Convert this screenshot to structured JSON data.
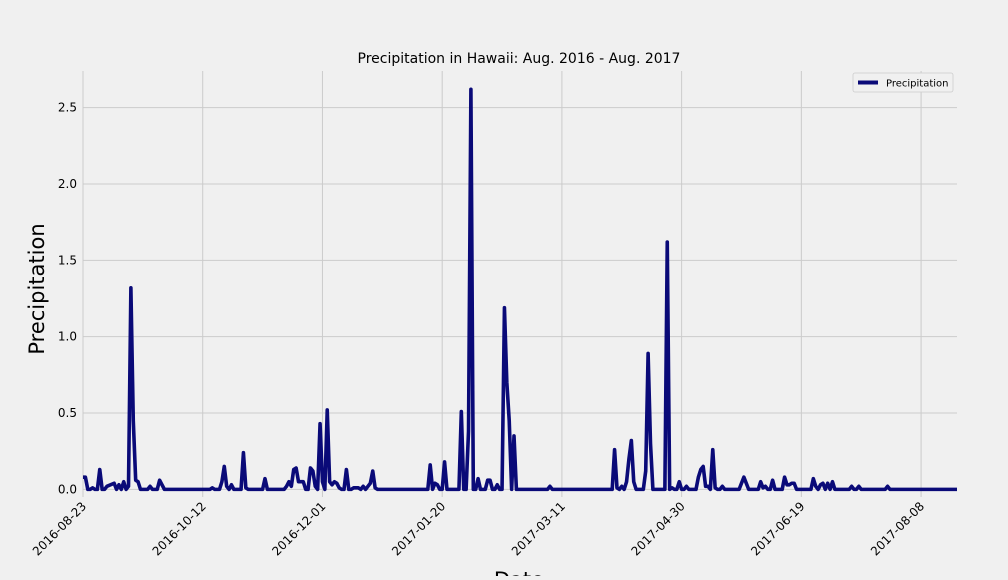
{
  "chart_data": {
    "type": "line",
    "title": "Precipitation in Hawaii: Aug. 2016 - Aug. 2017",
    "xlabel": "Date",
    "ylabel": "Precipitation",
    "x_type": "date",
    "xlim": [
      "2016-08-23",
      "2017-08-23"
    ],
    "ylim": [
      -0.05,
      2.74
    ],
    "yticks": [
      0.0,
      0.5,
      1.0,
      1.5,
      2.0,
      2.5
    ],
    "ytick_labels": [
      "0.0",
      "0.5",
      "1.0",
      "1.5",
      "2.0",
      "2.5"
    ],
    "xticks": [
      "2016-08-23",
      "2016-10-12",
      "2016-12-01",
      "2017-01-20",
      "2017-03-11",
      "2017-04-30",
      "2017-06-19",
      "2017-08-08"
    ],
    "grid": true,
    "legend_position": "top-right",
    "series": [
      {
        "name": "Precipitation",
        "color": "#0a0a78",
        "points": [
          [
            "2016-08-23",
            0.08
          ],
          [
            "2016-08-24",
            0.08
          ],
          [
            "2016-08-25",
            0.0
          ],
          [
            "2016-08-26",
            0.0
          ],
          [
            "2016-08-27",
            0.01
          ],
          [
            "2016-08-28",
            0.0
          ],
          [
            "2016-08-29",
            0.0
          ],
          [
            "2016-08-30",
            0.13
          ],
          [
            "2016-08-31",
            0.0
          ],
          [
            "2016-09-01",
            0.0
          ],
          [
            "2016-09-02",
            0.02
          ],
          [
            "2016-09-05",
            0.04
          ],
          [
            "2016-09-06",
            0.0
          ],
          [
            "2016-09-07",
            0.03
          ],
          [
            "2016-09-08",
            0.0
          ],
          [
            "2016-09-09",
            0.05
          ],
          [
            "2016-09-10",
            0.0
          ],
          [
            "2016-09-11",
            0.02
          ],
          [
            "2016-09-12",
            1.32
          ],
          [
            "2016-09-13",
            0.45
          ],
          [
            "2016-09-14",
            0.06
          ],
          [
            "2016-09-15",
            0.05
          ],
          [
            "2016-09-16",
            0.0
          ],
          [
            "2016-09-19",
            0.0
          ],
          [
            "2016-09-20",
            0.02
          ],
          [
            "2016-09-21",
            0.0
          ],
          [
            "2016-09-22",
            0.0
          ],
          [
            "2016-09-23",
            0.0
          ],
          [
            "2016-09-24",
            0.06
          ],
          [
            "2016-09-25",
            0.03
          ],
          [
            "2016-09-26",
            0.0
          ],
          [
            "2016-10-15",
            0.0
          ],
          [
            "2016-10-16",
            0.01
          ],
          [
            "2016-10-17",
            0.0
          ],
          [
            "2016-10-18",
            0.0
          ],
          [
            "2016-10-19",
            0.0
          ],
          [
            "2016-10-20",
            0.05
          ],
          [
            "2016-10-21",
            0.15
          ],
          [
            "2016-10-22",
            0.02
          ],
          [
            "2016-10-23",
            0.0
          ],
          [
            "2016-10-24",
            0.03
          ],
          [
            "2016-10-25",
            0.0
          ],
          [
            "2016-10-26",
            0.0
          ],
          [
            "2016-10-27",
            0.0
          ],
          [
            "2016-10-28",
            0.0
          ],
          [
            "2016-10-29",
            0.24
          ],
          [
            "2016-10-30",
            0.01
          ],
          [
            "2016-10-31",
            0.0
          ],
          [
            "2016-11-06",
            0.0
          ],
          [
            "2016-11-07",
            0.07
          ],
          [
            "2016-11-08",
            0.0
          ],
          [
            "2016-11-09",
            0.0
          ],
          [
            "2016-11-15",
            0.0
          ],
          [
            "2016-11-16",
            0.02
          ],
          [
            "2016-11-17",
            0.05
          ],
          [
            "2016-11-18",
            0.02
          ],
          [
            "2016-11-19",
            0.13
          ],
          [
            "2016-11-20",
            0.14
          ],
          [
            "2016-11-21",
            0.05
          ],
          [
            "2016-11-22",
            0.05
          ],
          [
            "2016-11-23",
            0.05
          ],
          [
            "2016-11-24",
            0.0
          ],
          [
            "2016-11-25",
            0.0
          ],
          [
            "2016-11-26",
            0.14
          ],
          [
            "2016-11-27",
            0.12
          ],
          [
            "2016-11-28",
            0.02
          ],
          [
            "2016-11-29",
            0.0
          ],
          [
            "2016-11-30",
            0.43
          ],
          [
            "2016-12-01",
            0.05
          ],
          [
            "2016-12-02",
            0.0
          ],
          [
            "2016-12-03",
            0.52
          ],
          [
            "2016-12-04",
            0.05
          ],
          [
            "2016-12-05",
            0.03
          ],
          [
            "2016-12-06",
            0.05
          ],
          [
            "2016-12-07",
            0.04
          ],
          [
            "2016-12-08",
            0.01
          ],
          [
            "2016-12-09",
            0.0
          ],
          [
            "2016-12-10",
            0.0
          ],
          [
            "2016-12-11",
            0.13
          ],
          [
            "2016-12-12",
            0.0
          ],
          [
            "2016-12-13",
            0.0
          ],
          [
            "2016-12-14",
            0.01
          ],
          [
            "2016-12-15",
            0.01
          ],
          [
            "2016-12-16",
            0.01
          ],
          [
            "2016-12-17",
            0.0
          ],
          [
            "2016-12-18",
            0.02
          ],
          [
            "2016-12-19",
            0.0
          ],
          [
            "2016-12-20",
            0.02
          ],
          [
            "2016-12-21",
            0.04
          ],
          [
            "2016-12-22",
            0.12
          ],
          [
            "2016-12-23",
            0.01
          ],
          [
            "2016-12-24",
            0.0
          ],
          [
            "2017-01-14",
            0.0
          ],
          [
            "2017-01-15",
            0.16
          ],
          [
            "2017-01-16",
            0.0
          ],
          [
            "2017-01-17",
            0.04
          ],
          [
            "2017-01-18",
            0.03
          ],
          [
            "2017-01-19",
            0.0
          ],
          [
            "2017-01-20",
            0.0
          ],
          [
            "2017-01-21",
            0.18
          ],
          [
            "2017-01-22",
            0.0
          ],
          [
            "2017-01-23",
            0.0
          ],
          [
            "2017-01-27",
            0.0
          ],
          [
            "2017-01-28",
            0.51
          ],
          [
            "2017-01-29",
            0.0
          ],
          [
            "2017-01-30",
            0.0
          ],
          [
            "2017-01-31",
            0.38
          ],
          [
            "2017-02-01",
            2.62
          ],
          [
            "2017-02-02",
            0.0
          ],
          [
            "2017-02-03",
            0.0
          ],
          [
            "2017-02-04",
            0.07
          ],
          [
            "2017-02-05",
            0.0
          ],
          [
            "2017-02-06",
            0.0
          ],
          [
            "2017-02-07",
            0.0
          ],
          [
            "2017-02-08",
            0.06
          ],
          [
            "2017-02-09",
            0.06
          ],
          [
            "2017-02-10",
            0.0
          ],
          [
            "2017-02-11",
            0.0
          ],
          [
            "2017-02-12",
            0.03
          ],
          [
            "2017-02-13",
            0.0
          ],
          [
            "2017-02-14",
            0.0
          ],
          [
            "2017-02-15",
            1.19
          ],
          [
            "2017-02-16",
            0.7
          ],
          [
            "2017-02-17",
            0.45
          ],
          [
            "2017-02-18",
            0.0
          ],
          [
            "2017-02-19",
            0.35
          ],
          [
            "2017-02-20",
            0.0
          ],
          [
            "2017-02-21",
            0.0
          ],
          [
            "2017-03-05",
            0.0
          ],
          [
            "2017-03-06",
            0.02
          ],
          [
            "2017-03-07",
            0.0
          ],
          [
            "2017-03-08",
            0.0
          ],
          [
            "2017-04-01",
            0.0
          ],
          [
            "2017-04-02",
            0.26
          ],
          [
            "2017-04-03",
            0.01
          ],
          [
            "2017-04-04",
            0.0
          ],
          [
            "2017-04-05",
            0.02
          ],
          [
            "2017-04-06",
            0.0
          ],
          [
            "2017-04-07",
            0.05
          ],
          [
            "2017-04-08",
            0.2
          ],
          [
            "2017-04-09",
            0.32
          ],
          [
            "2017-04-10",
            0.05
          ],
          [
            "2017-04-11",
            0.0
          ],
          [
            "2017-04-12",
            0.0
          ],
          [
            "2017-04-13",
            0.0
          ],
          [
            "2017-04-14",
            0.0
          ],
          [
            "2017-04-15",
            0.12
          ],
          [
            "2017-04-16",
            0.89
          ],
          [
            "2017-04-17",
            0.3
          ],
          [
            "2017-04-18",
            0.0
          ],
          [
            "2017-04-19",
            0.0
          ],
          [
            "2017-04-20",
            0.0
          ],
          [
            "2017-04-21",
            0.0
          ],
          [
            "2017-04-22",
            0.0
          ],
          [
            "2017-04-23",
            0.0
          ],
          [
            "2017-04-24",
            1.62
          ],
          [
            "2017-04-25",
            0.0
          ],
          [
            "2017-04-26",
            0.01
          ],
          [
            "2017-04-27",
            0.0
          ],
          [
            "2017-04-28",
            0.0
          ],
          [
            "2017-04-29",
            0.05
          ],
          [
            "2017-04-30",
            0.0
          ],
          [
            "2017-05-01",
            0.0
          ],
          [
            "2017-05-02",
            0.02
          ],
          [
            "2017-05-03",
            0.0
          ],
          [
            "2017-05-04",
            0.0
          ],
          [
            "2017-05-05",
            0.0
          ],
          [
            "2017-05-06",
            0.0
          ],
          [
            "2017-05-07",
            0.08
          ],
          [
            "2017-05-08",
            0.13
          ],
          [
            "2017-05-09",
            0.15
          ],
          [
            "2017-05-10",
            0.02
          ],
          [
            "2017-05-11",
            0.02
          ],
          [
            "2017-05-12",
            0.0
          ],
          [
            "2017-05-13",
            0.26
          ],
          [
            "2017-05-14",
            0.01
          ],
          [
            "2017-05-15",
            0.0
          ],
          [
            "2017-05-16",
            0.0
          ],
          [
            "2017-05-17",
            0.02
          ],
          [
            "2017-05-18",
            0.0
          ],
          [
            "2017-05-24",
            0.0
          ],
          [
            "2017-05-25",
            0.04
          ],
          [
            "2017-05-26",
            0.08
          ],
          [
            "2017-05-27",
            0.04
          ],
          [
            "2017-05-28",
            0.0
          ],
          [
            "2017-05-29",
            0.0
          ],
          [
            "2017-06-01",
            0.0
          ],
          [
            "2017-06-02",
            0.05
          ],
          [
            "2017-06-03",
            0.01
          ],
          [
            "2017-06-04",
            0.02
          ],
          [
            "2017-06-05",
            0.0
          ],
          [
            "2017-06-06",
            0.0
          ],
          [
            "2017-06-07",
            0.06
          ],
          [
            "2017-06-08",
            0.0
          ],
          [
            "2017-06-11",
            0.0
          ],
          [
            "2017-06-12",
            0.08
          ],
          [
            "2017-06-13",
            0.03
          ],
          [
            "2017-06-14",
            0.03
          ],
          [
            "2017-06-15",
            0.04
          ],
          [
            "2017-06-16",
            0.04
          ],
          [
            "2017-06-17",
            0.0
          ],
          [
            "2017-06-23",
            0.0
          ],
          [
            "2017-06-24",
            0.07
          ],
          [
            "2017-06-25",
            0.02
          ],
          [
            "2017-06-26",
            0.0
          ],
          [
            "2017-06-27",
            0.03
          ],
          [
            "2017-06-28",
            0.04
          ],
          [
            "2017-06-29",
            0.0
          ],
          [
            "2017-06-30",
            0.04
          ],
          [
            "2017-07-01",
            0.0
          ],
          [
            "2017-07-02",
            0.05
          ],
          [
            "2017-07-03",
            0.0
          ],
          [
            "2017-07-04",
            0.0
          ],
          [
            "2017-07-09",
            0.0
          ],
          [
            "2017-07-10",
            0.02
          ],
          [
            "2017-07-11",
            0.0
          ],
          [
            "2017-07-12",
            0.0
          ],
          [
            "2017-07-13",
            0.02
          ],
          [
            "2017-07-14",
            0.0
          ],
          [
            "2017-07-24",
            0.0
          ],
          [
            "2017-07-25",
            0.02
          ],
          [
            "2017-07-26",
            0.0
          ],
          [
            "2017-08-23",
            0.0
          ]
        ]
      }
    ]
  }
}
